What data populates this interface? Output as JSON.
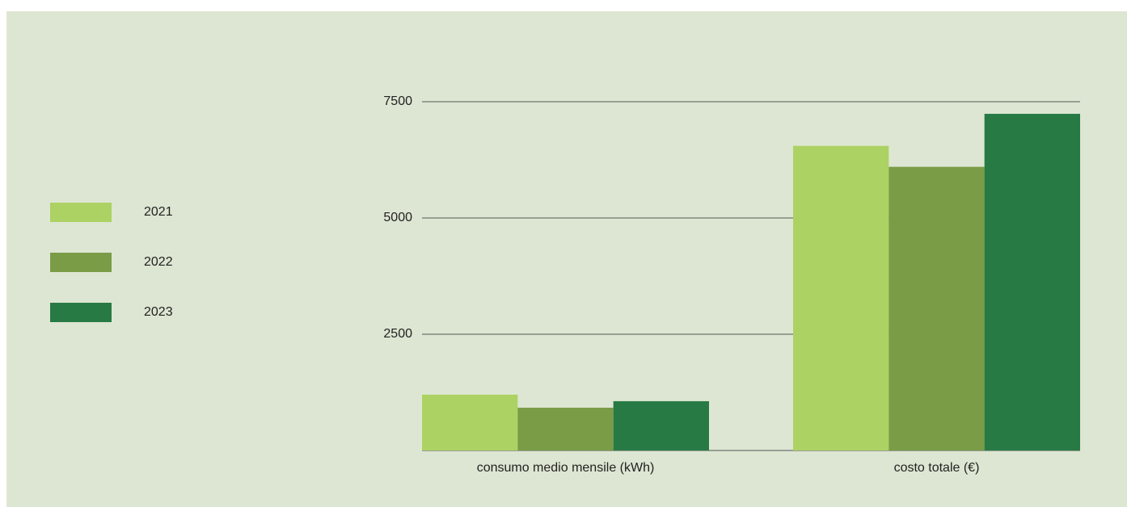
{
  "chart_data": {
    "type": "bar",
    "categories": [
      "consumo medio mensile (kWh)",
      "costo totale (€)"
    ],
    "series": [
      {
        "name": "2021",
        "color": "#acd263",
        "values": [
          1200,
          6550
        ]
      },
      {
        "name": "2022",
        "color": "#7a9c47",
        "values": [
          920,
          6100
        ]
      },
      {
        "name": "2023",
        "color": "#287a45",
        "values": [
          1060,
          7240
        ]
      }
    ],
    "ylim": [
      0,
      7500
    ],
    "yticks": [
      2500,
      5000,
      7500
    ],
    "grid": true,
    "legend": "left"
  }
}
